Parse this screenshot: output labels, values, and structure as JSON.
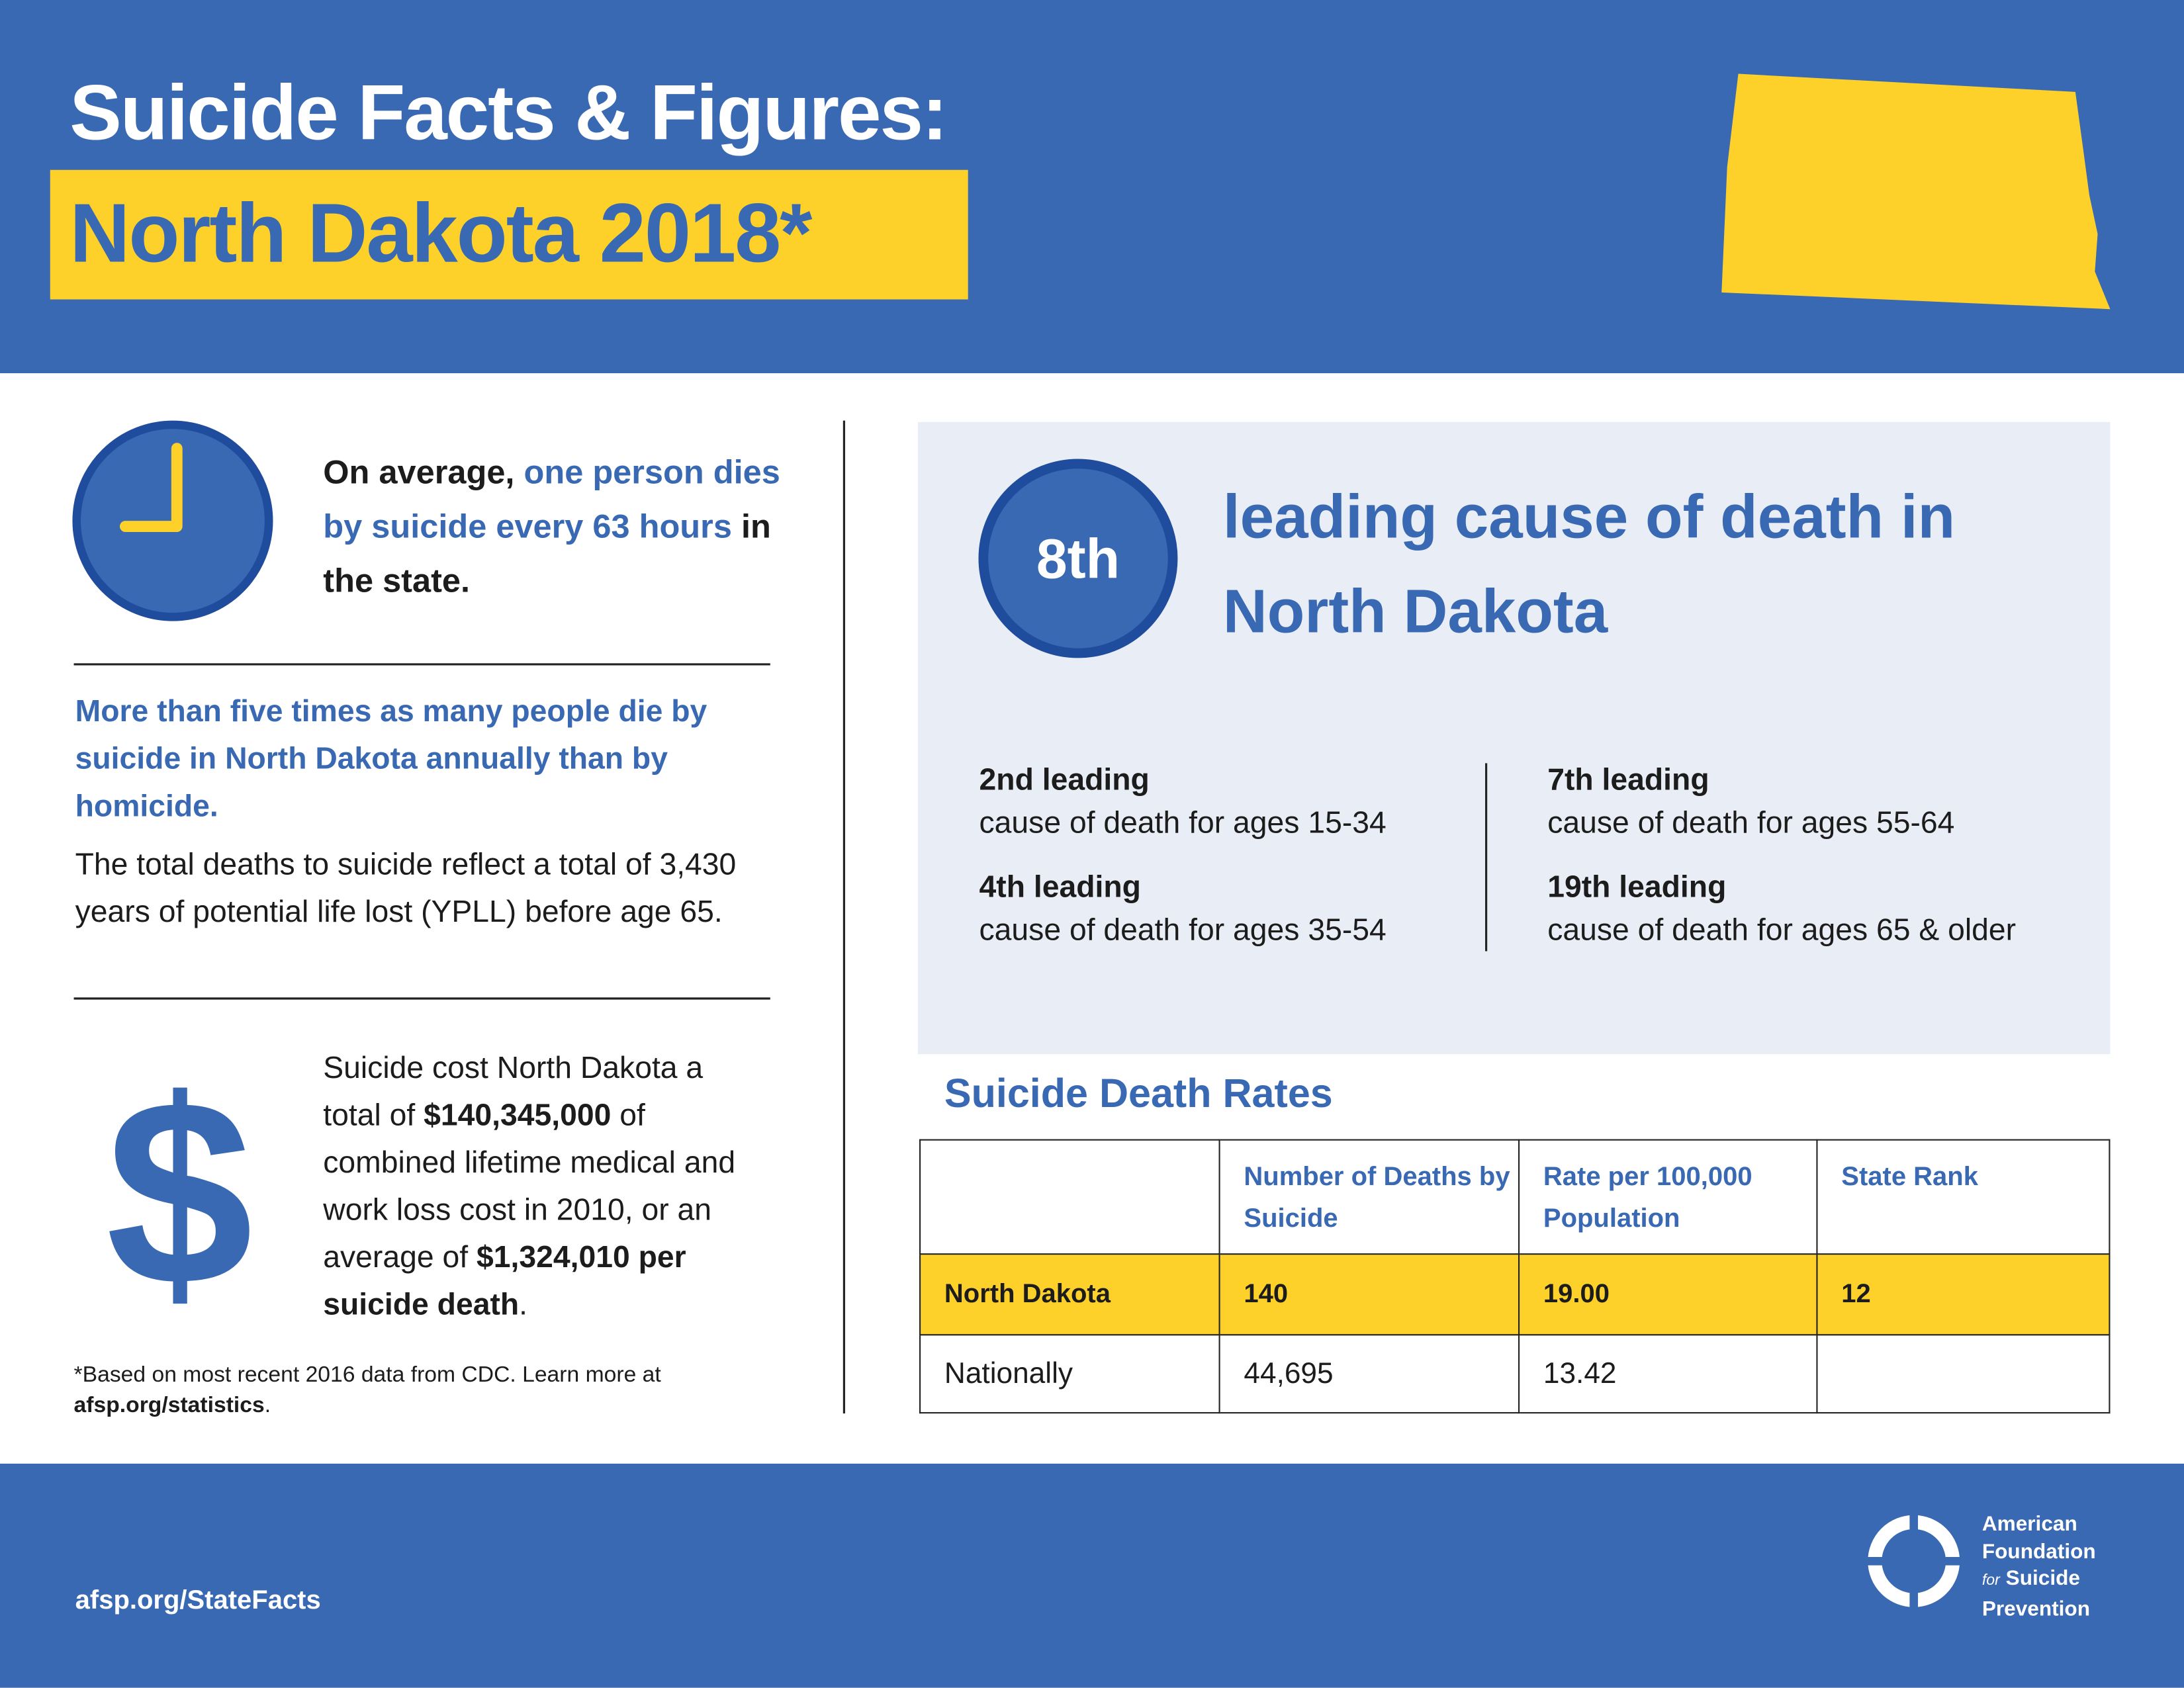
{
  "header": {
    "title": "Suicide Facts & Figures:",
    "subtitle": "North Dakota 2018*"
  },
  "clock_fact": {
    "lead": "On average,",
    "highlight": "one person dies by suicide every 63 hours",
    "tail": "in the state."
  },
  "homicide_fact": {
    "headline": "More than five times as many people die by suicide in North Dakota annually than by homicide.",
    "body": "The total deaths to suicide reflect a total of 3,430 years of potential life lost (YPLL) before age 65."
  },
  "cost_fact": {
    "icon": "$",
    "part1": "Suicide cost North Dakota a total of",
    "total": "$140,345,000",
    "part2": "of combined lifetime medical and work loss cost in 2010, or an average of",
    "average": "$1,324,010 per suicide death",
    "end": "."
  },
  "footnote": {
    "text": "*Based on most recent 2016 data from CDC. Learn more at",
    "link": "afsp.org/statistics",
    "end": "."
  },
  "rank": {
    "badge": "8th",
    "heading": "leading cause of death in North Dakota",
    "items": [
      {
        "rank": "2nd leading",
        "desc": "cause of death for ages 15-34"
      },
      {
        "rank": "4th leading",
        "desc": "cause of death for ages 35-54"
      },
      {
        "rank": "7th leading",
        "desc": "cause of death for ages 55-64"
      },
      {
        "rank": "19th leading",
        "desc": "cause of death for ages 65 & older"
      }
    ]
  },
  "table": {
    "title": "Suicide Death Rates",
    "headers": [
      "Number of Deaths by Suicide",
      "Rate per 100,000 Population",
      "State Rank"
    ],
    "rows": [
      [
        "North Dakota",
        "140",
        "19.00",
        "12"
      ],
      [
        "Nationally",
        "44,695",
        "13.42"
      ]
    ]
  },
  "footer": {
    "url": "afsp.org/StateFacts",
    "logo": {
      "line1": "American",
      "line2": "Foundation",
      "for": "for",
      "line3": "Suicide",
      "line4": "Prevention"
    }
  }
}
